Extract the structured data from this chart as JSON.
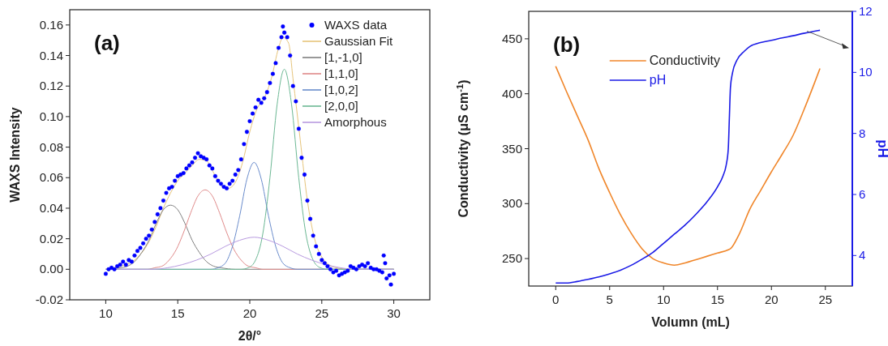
{
  "chart_data": [
    {
      "type": "scatter",
      "xlabel": "2θ/°",
      "ylabel": "WAXS Intensity",
      "annotations": [
        "(a)"
      ],
      "xlim": [
        7.5,
        32.5
      ],
      "xticks": [
        10,
        15,
        20,
        25,
        30
      ],
      "ylim": [
        -0.02,
        0.17
      ],
      "yticks": [
        {
          "value": -0.02,
          "label": "-0.02"
        },
        {
          "value": 0,
          "label": "0.00"
        },
        {
          "value": 0.02,
          "label": "0.02"
        },
        {
          "value": 0.04,
          "label": "0.04"
        },
        {
          "value": 0.06,
          "label": "0.06"
        },
        {
          "value": 0.08,
          "label": "0.08"
        },
        {
          "value": 0.1,
          "label": "0.10"
        },
        {
          "value": 0.12,
          "label": "0.12"
        },
        {
          "value": 0.14,
          "label": "0.14"
        },
        {
          "value": 0.16,
          "label": "0.16"
        }
      ],
      "grid": false,
      "legend": "top right",
      "series": [
        {
          "name": "WAXS data",
          "marker": "circle",
          "color": "#0000ff",
          "x": [
            10.0,
            10.2,
            10.4,
            10.6,
            10.8,
            11.0,
            11.2,
            11.4,
            11.6,
            11.8,
            12.0,
            12.2,
            12.4,
            12.6,
            12.8,
            13.0,
            13.2,
            13.4,
            13.6,
            13.8,
            14.0,
            14.2,
            14.4,
            14.6,
            14.8,
            15.0,
            15.2,
            15.4,
            15.6,
            15.8,
            16.0,
            16.2,
            16.4,
            16.6,
            16.8,
            17.0,
            17.2,
            17.4,
            17.6,
            17.8,
            18.0,
            18.2,
            18.4,
            18.6,
            18.8,
            19.0,
            19.2,
            19.4,
            19.6,
            19.8,
            20.0,
            20.2,
            20.4,
            20.6,
            20.8,
            21.0,
            21.2,
            21.4,
            21.6,
            21.8,
            22.0,
            22.2,
            22.3,
            22.4,
            22.6,
            22.8,
            23.0,
            23.2,
            23.4,
            23.6,
            23.8,
            24.0,
            24.2,
            24.4,
            24.6,
            24.8,
            25.0,
            25.2,
            25.4,
            25.6,
            25.8,
            26.0,
            26.2,
            26.4,
            26.6,
            26.8,
            27.0,
            27.2,
            27.4,
            27.6,
            27.8,
            28.0,
            28.2,
            28.4,
            28.6,
            28.8,
            29.0,
            29.2,
            29.3,
            29.4,
            29.5,
            29.7,
            29.8,
            30.0
          ],
          "values": [
            -0.003,
            0.0,
            0.001,
            0.0,
            0.002,
            0.003,
            0.005,
            0.003,
            0.006,
            0.005,
            0.009,
            0.012,
            0.014,
            0.017,
            0.02,
            0.022,
            0.026,
            0.031,
            0.036,
            0.04,
            0.045,
            0.05,
            0.053,
            0.054,
            0.058,
            0.061,
            0.062,
            0.063,
            0.066,
            0.068,
            0.07,
            0.073,
            0.076,
            0.074,
            0.073,
            0.072,
            0.068,
            0.066,
            0.061,
            0.058,
            0.056,
            0.054,
            0.053,
            0.056,
            0.058,
            0.062,
            0.065,
            0.072,
            0.082,
            0.09,
            0.097,
            0.102,
            0.106,
            0.111,
            0.109,
            0.112,
            0.116,
            0.122,
            0.128,
            0.135,
            0.145,
            0.152,
            0.159,
            0.155,
            0.152,
            0.14,
            0.12,
            0.11,
            0.092,
            0.073,
            0.062,
            0.045,
            0.033,
            0.022,
            0.015,
            0.01,
            0.006,
            0.004,
            0.002,
            0.0,
            -0.002,
            -0.001,
            -0.004,
            -0.003,
            -0.002,
            -0.001,
            0.002,
            0.001,
            0.0,
            0.002,
            0.003,
            0.002,
            0.004,
            0.001,
            0.0,
            0.0,
            -0.001,
            -0.002,
            0.009,
            0.004,
            -0.006,
            -0.004,
            -0.01,
            -0.003
          ]
        },
        {
          "name": "Gaussian Fit",
          "type": "line",
          "color": "#e6c47a",
          "x": [
            10,
            11,
            12,
            13,
            13.5,
            14,
            14.5,
            15,
            15.5,
            16,
            16.5,
            17,
            17.5,
            18,
            18.5,
            19,
            19.5,
            20,
            20.5,
            21,
            21.5,
            22,
            22.3,
            22.7,
            23,
            23.5,
            24,
            24.5,
            25,
            25.5,
            26,
            27,
            30
          ],
          "values": [
            0.0,
            0.002,
            0.006,
            0.018,
            0.028,
            0.04,
            0.05,
            0.058,
            0.063,
            0.068,
            0.072,
            0.071,
            0.063,
            0.055,
            0.053,
            0.057,
            0.07,
            0.09,
            0.105,
            0.112,
            0.125,
            0.145,
            0.152,
            0.148,
            0.125,
            0.085,
            0.045,
            0.02,
            0.008,
            0.003,
            0.001,
            0.0,
            0.0
          ]
        },
        {
          "name": "[1,-1,0]",
          "type": "line",
          "color": "#808080",
          "x": [
            10,
            11,
            11.5,
            12,
            12.5,
            13,
            13.5,
            14,
            14.5,
            15,
            15.5,
            16,
            16.5,
            17,
            17.5,
            18,
            19,
            30
          ],
          "values": [
            0,
            0.001,
            0.002,
            0.005,
            0.011,
            0.019,
            0.03,
            0.039,
            0.042,
            0.039,
            0.03,
            0.019,
            0.011,
            0.005,
            0.002,
            0.001,
            0,
            0
          ]
        },
        {
          "name": "[1,1,0]",
          "type": "line",
          "color": "#e08a8a",
          "x": [
            10,
            12.9,
            13.4,
            13.9,
            14.4,
            14.9,
            15.4,
            15.9,
            16.4,
            16.9,
            17.4,
            17.9,
            18.4,
            18.9,
            19.4,
            19.9,
            20.4,
            20.9,
            30
          ],
          "values": [
            0,
            0,
            0.001,
            0.002,
            0.006,
            0.013,
            0.024,
            0.037,
            0.048,
            0.052,
            0.048,
            0.037,
            0.024,
            0.013,
            0.006,
            0.002,
            0.001,
            0,
            0
          ]
        },
        {
          "name": "[1,0,2]",
          "type": "line",
          "color": "#6a8ccc",
          "x": [
            10,
            17.3,
            17.8,
            18.3,
            18.8,
            19.3,
            19.8,
            20.3,
            20.8,
            21.3,
            21.8,
            22.3,
            22.8,
            23.3,
            30
          ],
          "values": [
            0,
            0,
            0.001,
            0.004,
            0.015,
            0.035,
            0.059,
            0.07,
            0.059,
            0.035,
            0.015,
            0.004,
            0.001,
            0,
            0
          ]
        },
        {
          "name": "[2,0,0]",
          "type": "line",
          "color": "#6cb894",
          "x": [
            10,
            19.4,
            19.9,
            20.4,
            20.9,
            21.4,
            21.9,
            22.4,
            22.9,
            23.4,
            23.9,
            24.4,
            24.9,
            25.4,
            30
          ],
          "values": [
            0,
            0,
            0.001,
            0.006,
            0.023,
            0.06,
            0.108,
            0.131,
            0.108,
            0.06,
            0.023,
            0.006,
            0.001,
            0,
            0
          ]
        },
        {
          "name": "Amorphous",
          "type": "line",
          "color": "#b89ae0",
          "x": [
            10,
            12.3,
            13.3,
            14.3,
            15.3,
            16.3,
            17.3,
            18.3,
            19.3,
            20.3,
            21.3,
            22.3,
            23.3,
            24.3,
            25.3,
            26.3,
            27.3,
            30
          ],
          "values": [
            0,
            0,
            0,
            0.001,
            0.003,
            0.006,
            0.01,
            0.015,
            0.019,
            0.021,
            0.019,
            0.015,
            0.01,
            0.006,
            0.003,
            0.001,
            0,
            0
          ]
        }
      ]
    },
    {
      "type": "line",
      "xlabel": "Volumn (mL)",
      "ylabel": "Conductivity (μS cm$^{-1}$)",
      "y2label": "pH",
      "annotations": [
        "(b)"
      ],
      "xlim": [
        -2.5,
        27.5
      ],
      "xticks": [
        0,
        5,
        10,
        15,
        20,
        25
      ],
      "ylim": [
        225,
        475
      ],
      "yticks": [
        250,
        300,
        350,
        400,
        450
      ],
      "y2lim": [
        3,
        12
      ],
      "y2ticks": [
        4,
        6,
        8,
        10,
        12
      ],
      "grid": false,
      "legend": "top",
      "series": [
        {
          "name": "Conductivity",
          "color": "#f0862a",
          "x": [
            0,
            1,
            2,
            3,
            4,
            5,
            6,
            7,
            8,
            9,
            10,
            11,
            12,
            13,
            14,
            15,
            16,
            16.2,
            17,
            18,
            19,
            20,
            21,
            22,
            23,
            24,
            24.5
          ],
          "values": [
            425,
            402,
            380,
            358,
            332,
            310,
            290,
            273,
            259,
            250,
            246,
            244,
            246,
            249,
            252,
            255,
            258,
            259,
            272,
            295,
            312,
            329,
            345,
            362,
            385,
            410,
            423
          ]
        },
        {
          "name": "pH",
          "axis": "y2",
          "color": "#1a1ae6",
          "x": [
            0,
            1,
            2,
            3,
            4,
            5,
            6,
            7,
            8,
            9,
            10,
            11,
            12,
            13,
            14,
            15,
            15.5,
            15.8,
            16,
            16.1,
            16.2,
            16.4,
            16.8,
            17.5,
            18,
            19,
            20,
            21,
            22,
            23,
            24,
            24.5
          ],
          "values": [
            3.1,
            3.1,
            3.15,
            3.22,
            3.3,
            3.4,
            3.52,
            3.68,
            3.88,
            4.1,
            4.4,
            4.7,
            5.0,
            5.35,
            5.75,
            6.25,
            6.6,
            6.95,
            7.5,
            8.5,
            9.5,
            10.0,
            10.4,
            10.7,
            10.85,
            10.98,
            11.05,
            11.13,
            11.2,
            11.28,
            11.35,
            11.38
          ]
        }
      ]
    }
  ]
}
